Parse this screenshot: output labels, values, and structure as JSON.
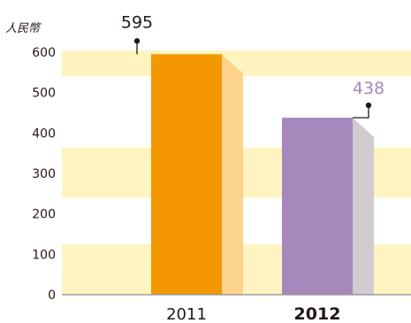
{
  "chart_data": {
    "type": "bar",
    "unit_label": "人民幣",
    "categories": [
      "2011",
      "2012"
    ],
    "values": [
      595,
      438
    ],
    "value_labels": [
      "595",
      "438"
    ],
    "ylim": [
      0,
      600
    ],
    "yticks": [
      "0",
      "100",
      "200",
      "300",
      "400",
      "500",
      "600"
    ],
    "bar_colors": [
      "#f39800",
      "#a688bd"
    ],
    "side_colors": [
      "#fcd38a",
      "#d2cbd0"
    ],
    "value_label_colors": [
      "#231815",
      "#a688bd"
    ],
    "category_bold": [
      false,
      true
    ],
    "band_color": "#fff4bf",
    "axis_color": "#9a9a9a",
    "leader_color": "#231815"
  }
}
